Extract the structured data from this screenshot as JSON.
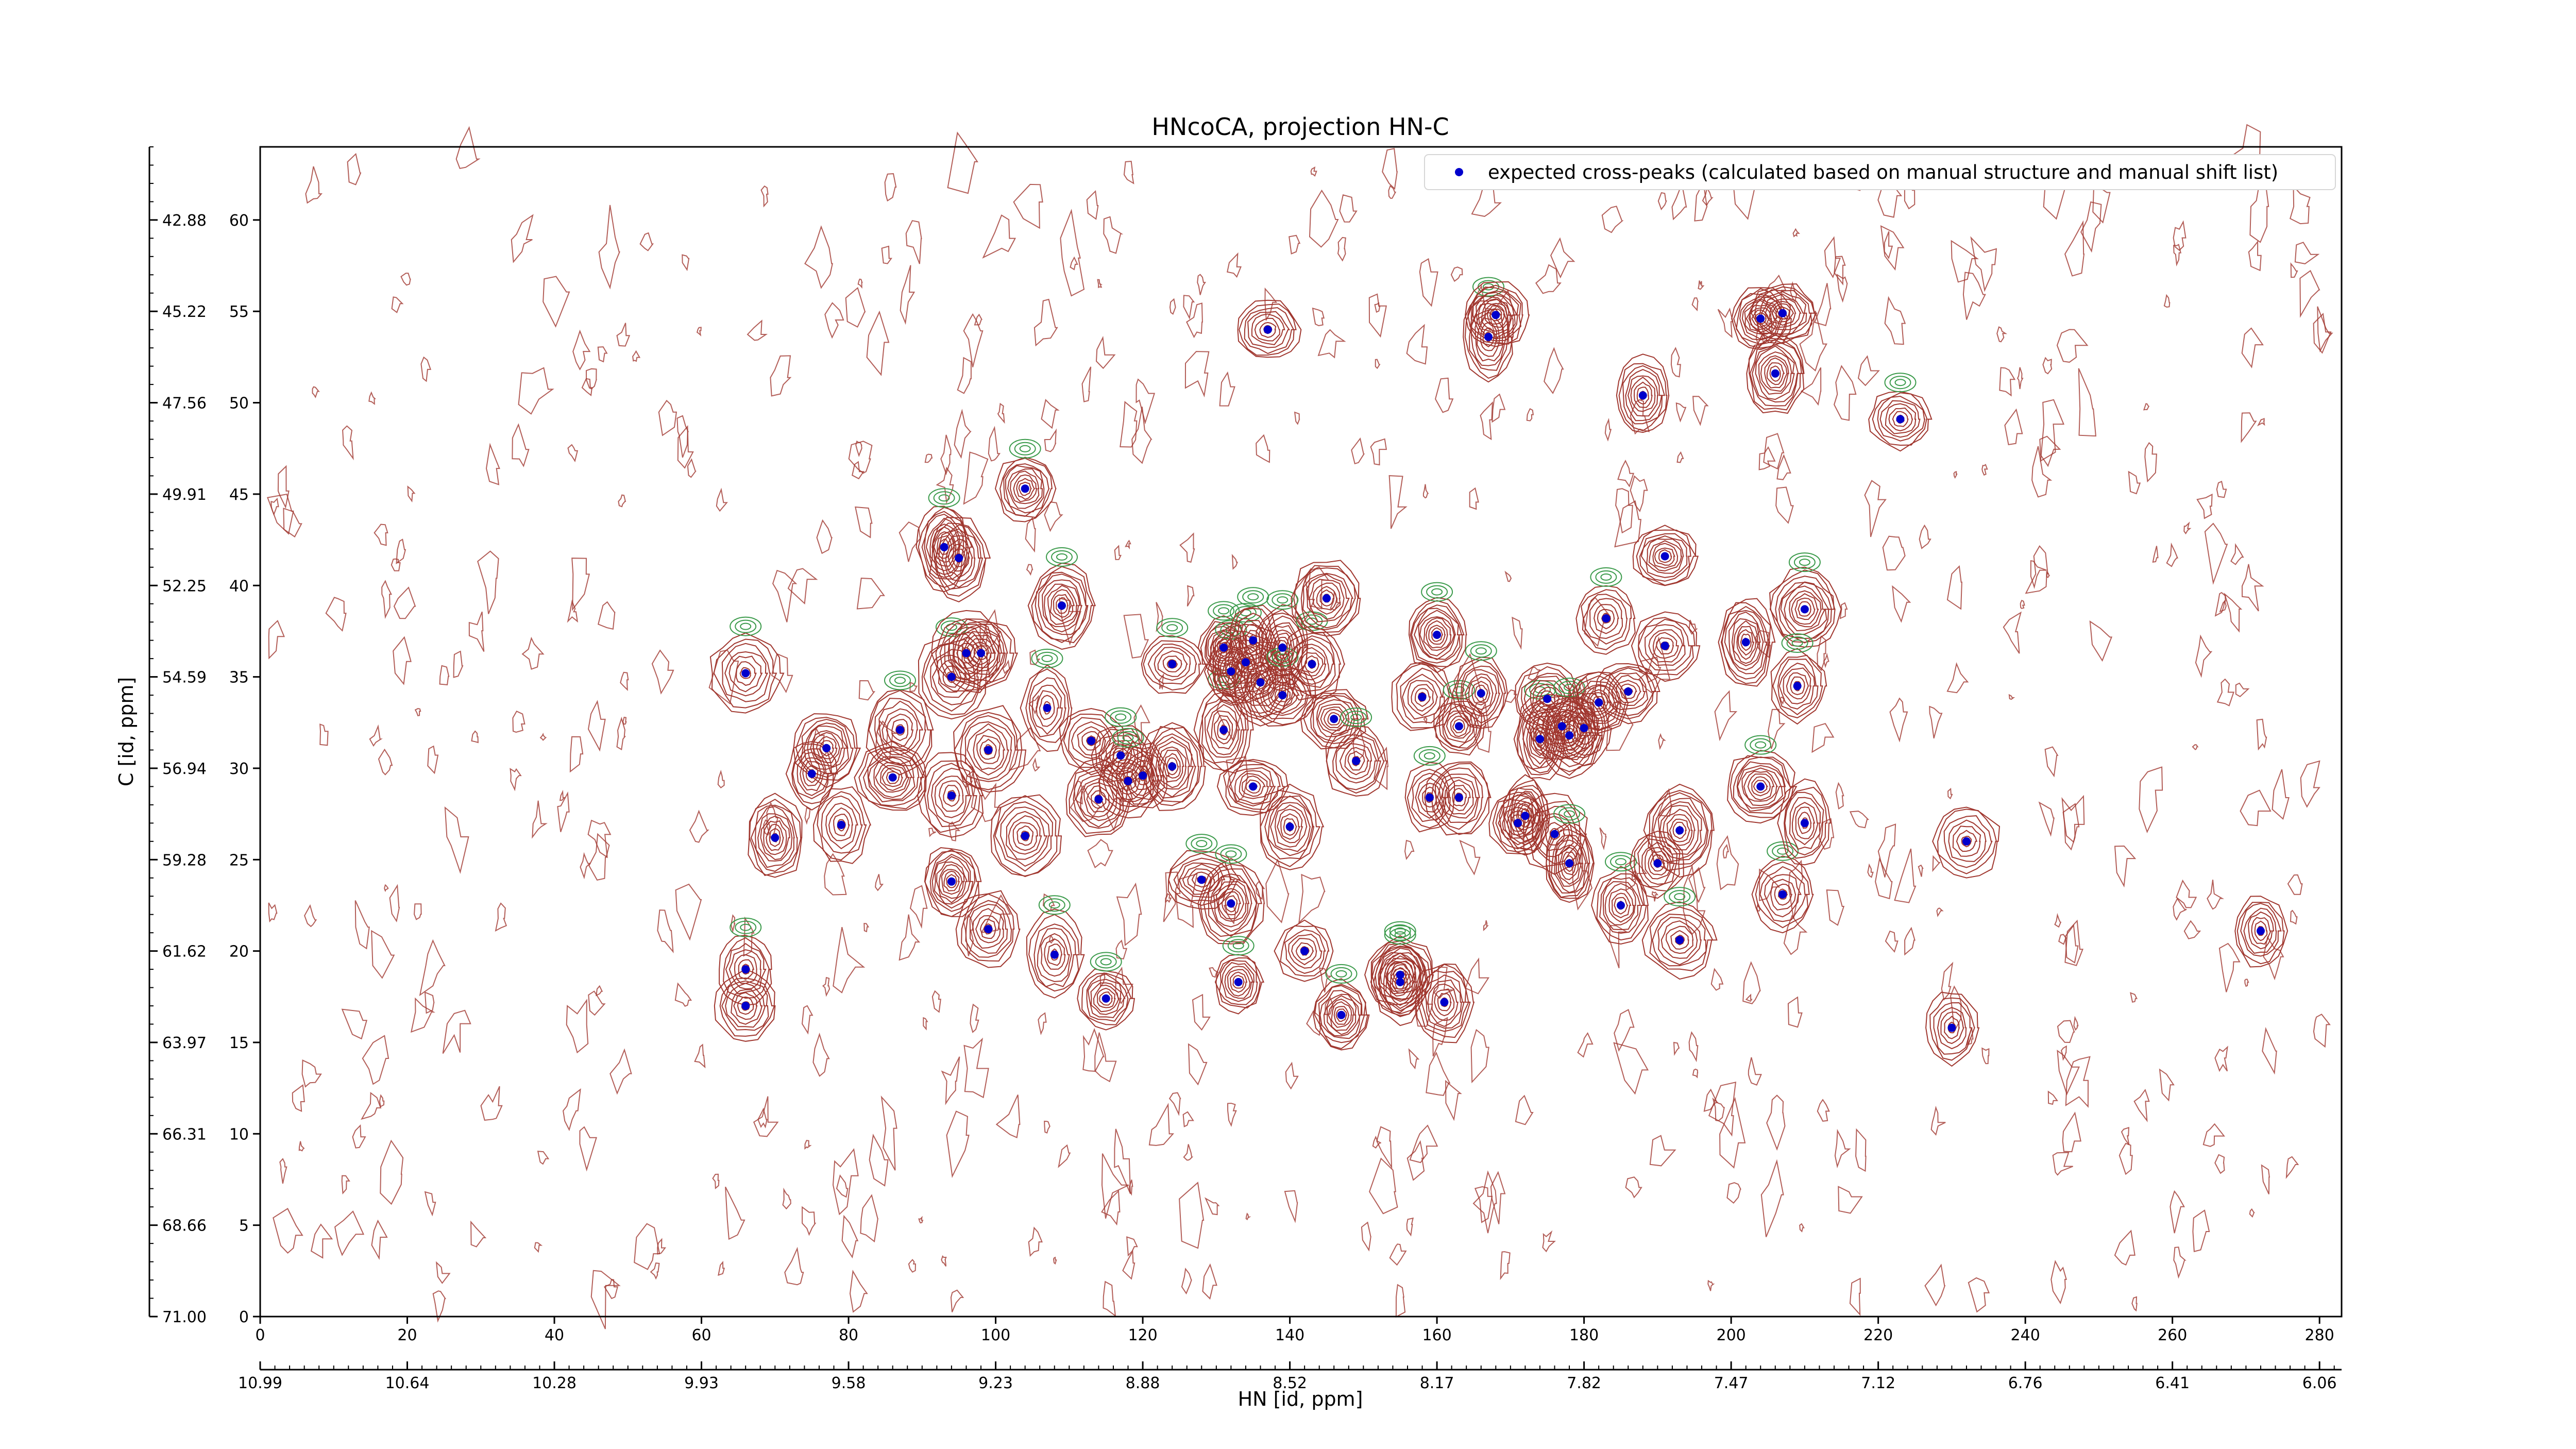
{
  "chart_data": {
    "type": "scatter",
    "title": "HNcoCA, projection HN-C",
    "xlabel": "HN [id, ppm]",
    "ylabel": "C [id, ppm]",
    "xlim": [
      0,
      283
    ],
    "ylim": [
      0,
      64
    ],
    "x_ticks": [
      0,
      20,
      40,
      60,
      80,
      100,
      120,
      140,
      160,
      180,
      200,
      220,
      240,
      260,
      280
    ],
    "y_ticks": [
      0,
      5,
      10,
      15,
      20,
      25,
      30,
      35,
      40,
      45,
      50,
      55,
      60
    ],
    "x_ppm_tick_positions": [
      0,
      20,
      40,
      60,
      80,
      100,
      120,
      140,
      160,
      180,
      200,
      220,
      240,
      260,
      280
    ],
    "x_ppm_tick_labels": [
      "10.99",
      "10.64",
      "10.28",
      "9.93",
      "9.58",
      "9.23",
      "8.88",
      "8.52",
      "8.17",
      "7.82",
      "7.47",
      "7.12",
      "6.76",
      "6.41",
      "6.06"
    ],
    "y_ppm_tick_positions": [
      0,
      5,
      10,
      15,
      20,
      25,
      30,
      35,
      40,
      45,
      50,
      55,
      60
    ],
    "y_ppm_tick_labels": [
      "71.00",
      "68.66",
      "66.31",
      "63.97",
      "61.62",
      "59.28",
      "56.94",
      "54.59",
      "52.25",
      "49.91",
      "47.56",
      "45.22",
      "42.88"
    ],
    "legend": {
      "position": "top-right",
      "entries": [
        "expected cross-peaks (calculated based on manual structure and manual shift list)"
      ]
    },
    "colors": {
      "peaks": "#0000cc",
      "contour_positive": "#a0362e",
      "contour_negative": "#3a9a4a",
      "axes": "#000000"
    },
    "series": [
      {
        "name": "expected cross-peaks (calculated based on manual structure and manual shift list)",
        "points": [
          {
            "x": 66,
            "y": 35.2
          },
          {
            "x": 70,
            "y": 26.2
          },
          {
            "x": 66,
            "y": 19.0
          },
          {
            "x": 66,
            "y": 17.0
          },
          {
            "x": 75,
            "y": 29.7
          },
          {
            "x": 77,
            "y": 31.1
          },
          {
            "x": 79,
            "y": 26.9
          },
          {
            "x": 87,
            "y": 32.1
          },
          {
            "x": 86,
            "y": 29.5
          },
          {
            "x": 93,
            "y": 42.1
          },
          {
            "x": 95,
            "y": 41.5
          },
          {
            "x": 94,
            "y": 35.0
          },
          {
            "x": 96,
            "y": 36.3
          },
          {
            "x": 98,
            "y": 36.3
          },
          {
            "x": 94,
            "y": 28.5
          },
          {
            "x": 99,
            "y": 31.0
          },
          {
            "x": 94,
            "y": 23.8
          },
          {
            "x": 99,
            "y": 21.2
          },
          {
            "x": 104,
            "y": 45.3
          },
          {
            "x": 109,
            "y": 38.9
          },
          {
            "x": 107,
            "y": 33.3
          },
          {
            "x": 104,
            "y": 26.3
          },
          {
            "x": 108,
            "y": 19.8
          },
          {
            "x": 115,
            "y": 17.4
          },
          {
            "x": 113,
            "y": 31.5
          },
          {
            "x": 114,
            "y": 28.3
          },
          {
            "x": 117,
            "y": 30.7
          },
          {
            "x": 118,
            "y": 29.3
          },
          {
            "x": 120,
            "y": 29.6
          },
          {
            "x": 124,
            "y": 30.1
          },
          {
            "x": 124,
            "y": 35.7
          },
          {
            "x": 128,
            "y": 23.9
          },
          {
            "x": 131,
            "y": 32.1
          },
          {
            "x": 131,
            "y": 36.6
          },
          {
            "x": 132,
            "y": 35.3
          },
          {
            "x": 134,
            "y": 35.8
          },
          {
            "x": 135,
            "y": 37.0
          },
          {
            "x": 136,
            "y": 34.7
          },
          {
            "x": 132,
            "y": 22.6
          },
          {
            "x": 133,
            "y": 18.3
          },
          {
            "x": 135,
            "y": 29.0
          },
          {
            "x": 137,
            "y": 54.0
          },
          {
            "x": 139,
            "y": 36.6
          },
          {
            "x": 139,
            "y": 34.0
          },
          {
            "x": 143,
            "y": 35.7
          },
          {
            "x": 140,
            "y": 26.8
          },
          {
            "x": 142,
            "y": 20.0
          },
          {
            "x": 145,
            "y": 39.3
          },
          {
            "x": 146,
            "y": 32.7
          },
          {
            "x": 147,
            "y": 16.5
          },
          {
            "x": 149,
            "y": 30.4
          },
          {
            "x": 155,
            "y": 18.7
          },
          {
            "x": 155,
            "y": 18.3
          },
          {
            "x": 158,
            "y": 33.9
          },
          {
            "x": 160,
            "y": 37.3
          },
          {
            "x": 159,
            "y": 28.4
          },
          {
            "x": 161,
            "y": 17.2
          },
          {
            "x": 163,
            "y": 32.3
          },
          {
            "x": 163,
            "y": 28.4
          },
          {
            "x": 166,
            "y": 34.1
          },
          {
            "x": 167,
            "y": 53.6
          },
          {
            "x": 168,
            "y": 54.8
          },
          {
            "x": 171,
            "y": 27.0
          },
          {
            "x": 172,
            "y": 27.4
          },
          {
            "x": 174,
            "y": 31.6
          },
          {
            "x": 175,
            "y": 33.8
          },
          {
            "x": 176,
            "y": 26.4
          },
          {
            "x": 177,
            "y": 32.3
          },
          {
            "x": 178,
            "y": 31.8
          },
          {
            "x": 178,
            "y": 24.8
          },
          {
            "x": 180,
            "y": 32.2
          },
          {
            "x": 182,
            "y": 33.6
          },
          {
            "x": 183,
            "y": 38.2
          },
          {
            "x": 186,
            "y": 34.2
          },
          {
            "x": 185,
            "y": 22.5
          },
          {
            "x": 188,
            "y": 50.4
          },
          {
            "x": 191,
            "y": 41.6
          },
          {
            "x": 191,
            "y": 36.7
          },
          {
            "x": 190,
            "y": 24.8
          },
          {
            "x": 193,
            "y": 26.6
          },
          {
            "x": 193,
            "y": 20.6
          },
          {
            "x": 202,
            "y": 36.9
          },
          {
            "x": 204,
            "y": 54.6
          },
          {
            "x": 206,
            "y": 51.6
          },
          {
            "x": 207,
            "y": 54.9
          },
          {
            "x": 204,
            "y": 29.0
          },
          {
            "x": 207,
            "y": 23.1
          },
          {
            "x": 210,
            "y": 38.7
          },
          {
            "x": 209,
            "y": 34.5
          },
          {
            "x": 210,
            "y": 27.0
          },
          {
            "x": 223,
            "y": 49.1
          },
          {
            "x": 230,
            "y": 15.8
          },
          {
            "x": 232,
            "y": 26.0
          },
          {
            "x": 272,
            "y": 21.1
          }
        ]
      }
    ]
  }
}
